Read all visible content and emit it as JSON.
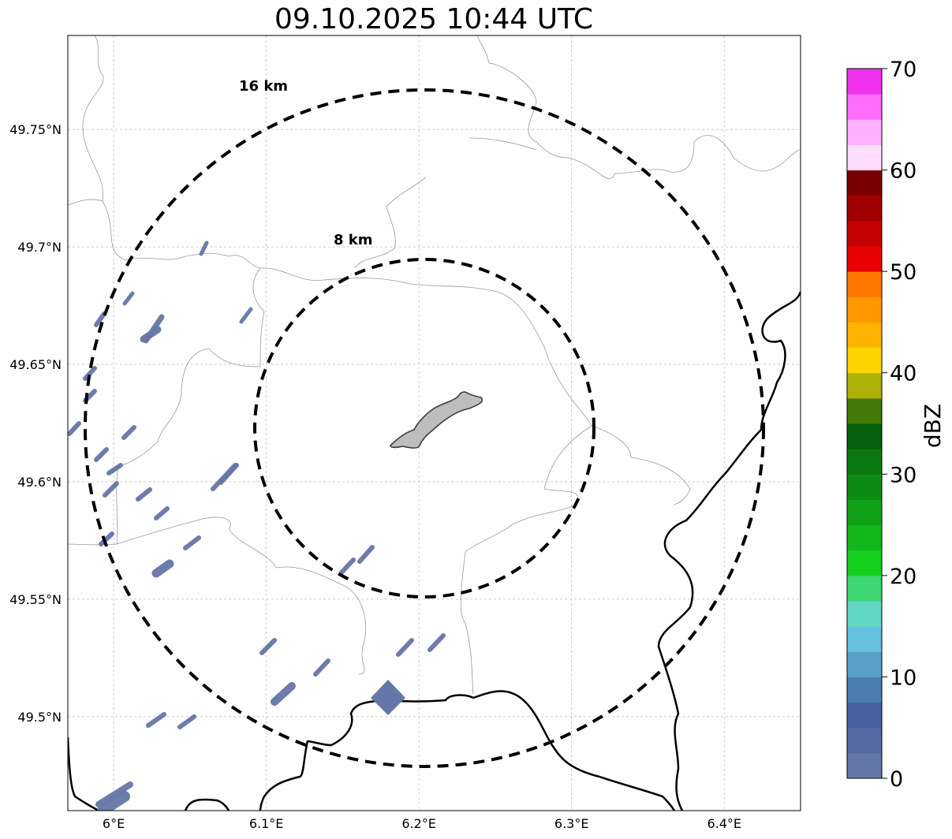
{
  "title": "09.10.2025 10:44 UTC",
  "map": {
    "lon_range": [
      5.97,
      6.45
    ],
    "lat_range": [
      49.46,
      49.79
    ],
    "lon_ticks": [
      {
        "value": 6.0,
        "label": "6°E"
      },
      {
        "value": 6.1,
        "label": "6.1°E"
      },
      {
        "value": 6.2,
        "label": "6.2°E"
      },
      {
        "value": 6.3,
        "label": "6.3°E"
      },
      {
        "value": 6.4,
        "label": "6.4°E"
      }
    ],
    "lat_ticks": [
      {
        "value": 49.5,
        "label": "49.5°N"
      },
      {
        "value": 49.55,
        "label": "49.55°N"
      },
      {
        "value": 49.6,
        "label": "49.6°N"
      },
      {
        "value": 49.65,
        "label": "49.65°N"
      },
      {
        "value": 49.7,
        "label": "49.7°N"
      },
      {
        "value": 49.75,
        "label": "49.75°N"
      }
    ],
    "grid": true,
    "range_rings": [
      {
        "label": "16 km",
        "radius_km": 16
      },
      {
        "label": "8 km",
        "radius_km": 8
      }
    ]
  },
  "colorbar": {
    "label": "dBZ",
    "min": 0,
    "max": 70,
    "ticks": [
      {
        "value": 0,
        "label": "0"
      },
      {
        "value": 10,
        "label": "10"
      },
      {
        "value": 20,
        "label": "20"
      },
      {
        "value": 30,
        "label": "30"
      },
      {
        "value": 40,
        "label": "40"
      },
      {
        "value": 50,
        "label": "50"
      },
      {
        "value": 60,
        "label": "60"
      },
      {
        "value": 70,
        "label": "70"
      }
    ],
    "colors": [
      "#6577a8",
      "#566aa3",
      "#4660a2",
      "#4b7db3",
      "#58a0c8",
      "#65c0dc",
      "#62d6c5",
      "#3fd674",
      "#14cf1d",
      "#12b81a",
      "#10a216",
      "#0d8c13",
      "#0a7a10",
      "#06600b",
      "#447a07",
      "#aeb107",
      "#fed400",
      "#ffb200",
      "#ff9700",
      "#ff7700",
      "#e60000",
      "#c40000",
      "#a00000",
      "#7a0000",
      "#ffdeff",
      "#ffb0ff",
      "#ff6dff",
      "#f032ef"
    ]
  },
  "echo_color": "#6577a8"
}
